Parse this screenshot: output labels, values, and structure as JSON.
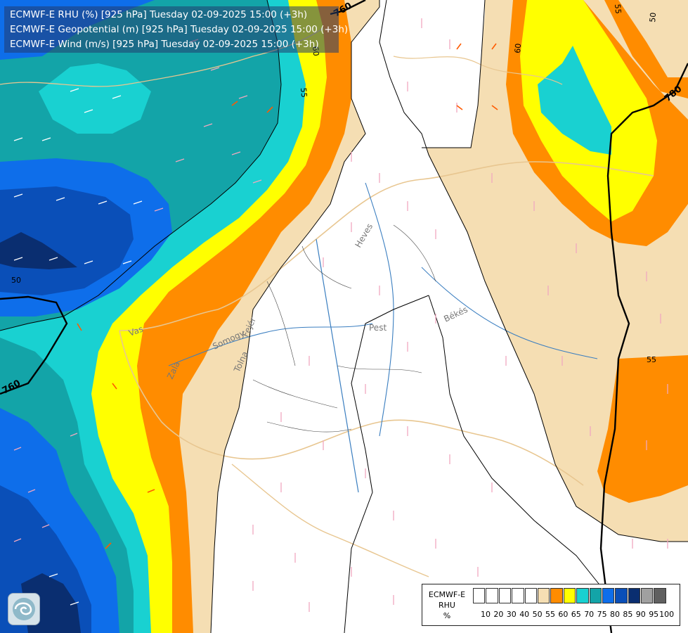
{
  "header": {
    "lines": [
      "ECMWF-E RHU (%) [925 hPa] Tuesday 02-09-2025 15:00 (+3h)",
      "ECMWF-E Geopotential (m) [925 hPa] Tuesday 02-09-2025 15:00 (+3h)",
      "ECMWF-E Wind (m/s) [925 hPa] Tuesday 02-09-2025 15:00 (+3h)"
    ]
  },
  "colors": {
    "c50_55": "#f5deb3",
    "c55_60": "#ff8c00",
    "c60_65": "#ffff00",
    "c65_70": "#19d1d1",
    "c70_75": "#13a4a8",
    "c75_80": "#0e6eea",
    "c80_85": "#0a4fb8",
    "c85_90": "#0a2e70",
    "white": "#ffffff"
  },
  "map_labels": {
    "geo_760_top": "760",
    "geo_760_left": "760",
    "geo_780_right": "780",
    "rh_50_left": "50",
    "rh_55_right": "55",
    "rh_55_top": "55",
    "rh_60_top": "60",
    "rh_55_upper": "55",
    "rh_50_top_right": "50",
    "region_heves": "Heves",
    "region_pest": "Pest",
    "region_bekes": "Békés",
    "region_somogy": "Somogy",
    "region_tolna": "Tolna",
    "region_vas": "Vas",
    "region_zala": "Zala",
    "region_fejer": "Fejér"
  },
  "legend": {
    "name_lines": [
      "ECMWF-E",
      "RHU",
      "%"
    ],
    "colors": [
      "#ffffff",
      "#ffffff",
      "#ffffff",
      "#ffffff",
      "#ffffff",
      "#f5deb3",
      "#ff8c00",
      "#ffff00",
      "#19d1d1",
      "#13a4a8",
      "#0e6eea",
      "#0a4fb8",
      "#0a2e70",
      "#a0a0a0",
      "#606060"
    ],
    "ticks": [
      "10",
      "20",
      "30",
      "40",
      "50",
      "55",
      "60",
      "65",
      "70",
      "75",
      "80",
      "85",
      "90",
      "95",
      "100"
    ]
  },
  "logo": {
    "icon": "ecmwf-logo-icon"
  }
}
